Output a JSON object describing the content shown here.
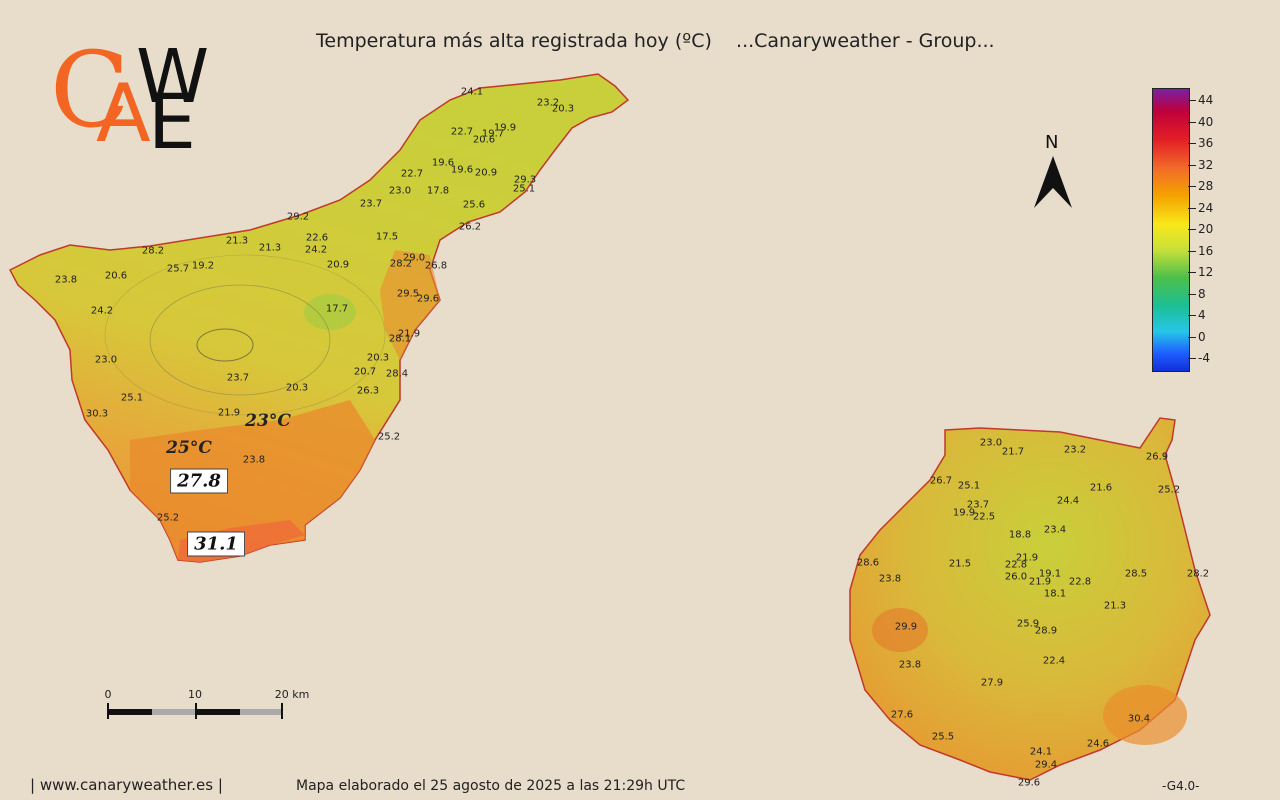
{
  "title": "Temperatura más alta registrada hoy (ºC)    ...Canaryweather - Group...",
  "logo": {
    "c": "C",
    "a": "A",
    "w": "W",
    "e": "E"
  },
  "north_label": "N",
  "legend": {
    "values": [
      "44",
      "40",
      "36",
      "32",
      "28",
      "24",
      "20",
      "16",
      "12",
      "8",
      "4",
      "0",
      "-4"
    ]
  },
  "scale": {
    "labels": [
      "0",
      "10",
      "20 km"
    ]
  },
  "footer": {
    "site": "| www.canaryweather.es |",
    "credit": "Mapa elaborado el 25 agosto de 2025 a las 21:29h UTC",
    "code": "-G4.0-"
  },
  "tenerife": {
    "labels": [
      "24.1",
      "23.2",
      "20.3",
      "22.7",
      "19.7",
      "19.9",
      "20.6",
      "19.6",
      "19.6",
      "20.9",
      "22.7",
      "29.3",
      "25.1",
      "23.0",
      "17.8",
      "23.7",
      "25.6",
      "29.2",
      "26.2",
      "22.6",
      "17.5",
      "21.3",
      "21.3",
      "24.2",
      "28.2",
      "29.0",
      "26.8",
      "28.2",
      "25.7",
      "19.2",
      "20.9",
      "23.8",
      "20.6",
      "29.5",
      "29.6",
      "24.2",
      "17.7",
      "21.9",
      "28.1",
      "23.0",
      "20.3",
      "20.7",
      "28.4",
      "23.7",
      "20.3",
      "26.3",
      "25.1",
      "30.3",
      "21.9",
      "25.2",
      "23.8",
      "25.2"
    ],
    "callouts": [
      "23°C",
      "25°C"
    ],
    "boxed": [
      "27.8",
      "31.1"
    ]
  },
  "gran_canaria": {
    "labels": [
      "23.0",
      "21.7",
      "23.2",
      "26.9",
      "26.7",
      "25.1",
      "21.6",
      "25.2",
      "24.4",
      "23.7",
      "19.9",
      "22.5",
      "23.4",
      "18.8",
      "21.9",
      "28.6",
      "21.5",
      "22.8",
      "26.0",
      "19.1",
      "21.9",
      "22.8",
      "28.5",
      "28.2",
      "23.8",
      "18.1",
      "21.3",
      "29.9",
      "25.9",
      "28.9",
      "22.4",
      "23.8",
      "27.9",
      "30.4",
      "27.6",
      "25.5",
      "24.1",
      "24.6",
      "29.4",
      "29.6"
    ]
  }
}
